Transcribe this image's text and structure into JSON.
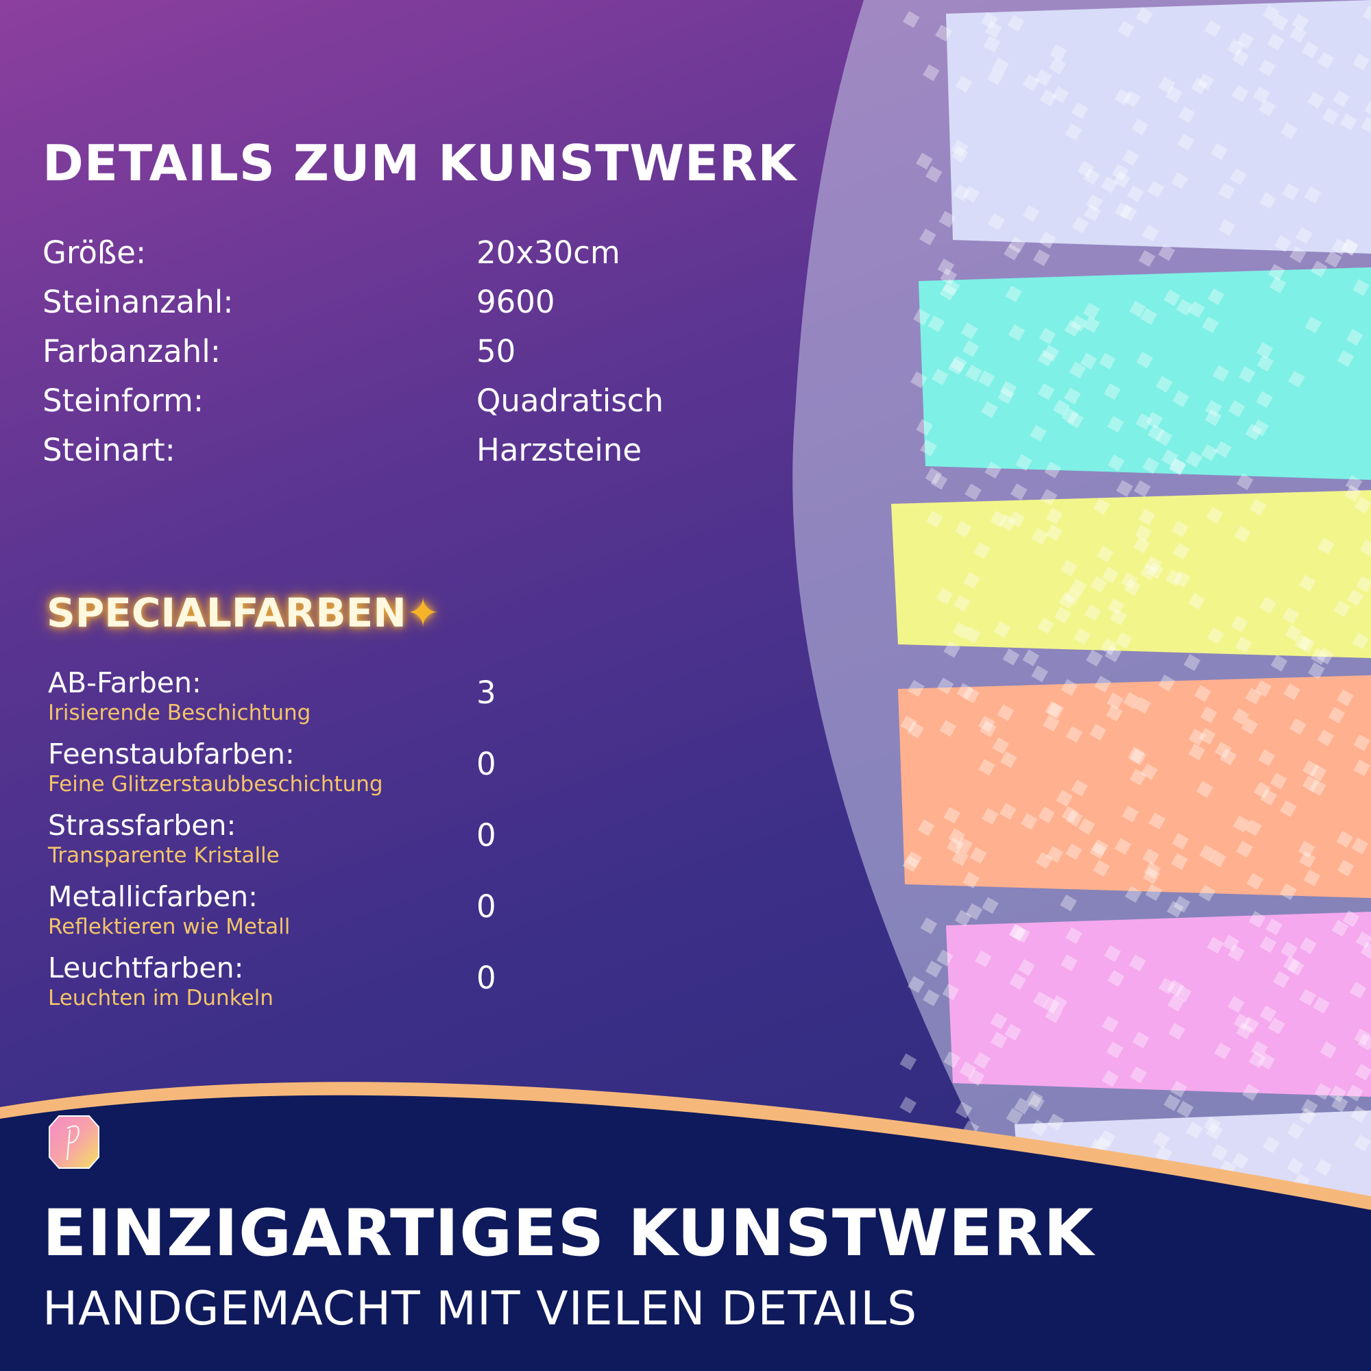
{
  "details": {
    "title": "DETAILS ZUM KUNSTWERK",
    "rows": [
      {
        "label": "Größe:",
        "value": "20x30cm"
      },
      {
        "label": "Steinanzahl:",
        "value": "9600"
      },
      {
        "label": "Farbanzahl:",
        "value": "50"
      },
      {
        "label": "Steinform:",
        "value": "Quadratisch"
      },
      {
        "label": "Steinart:",
        "value": "Harzsteine"
      }
    ]
  },
  "special": {
    "title": "SPECIALFARBEN",
    "title_icon": "sparkles-icon",
    "rows": [
      {
        "label": "AB-Farben:",
        "sub": "Irisierende Beschichtung",
        "value": "3"
      },
      {
        "label": "Feenstaubfarben:",
        "sub": "Feine Glitzerstaubbeschichtung",
        "value": "0"
      },
      {
        "label": "Strassfarben:",
        "sub": "Transparente Kristalle",
        "value": "0"
      },
      {
        "label": "Metallicfarben:",
        "sub": "Reflektieren wie Metall",
        "value": "0"
      },
      {
        "label": "Leuchtfarben:",
        "sub": "Leuchten im Dunkeln",
        "value": "0"
      }
    ]
  },
  "footer": {
    "title": "EINZIGARTIGES KUNSTWERK",
    "subtitle": "HANDGEMACHT MIT VIELEN DETAILS"
  },
  "colors": {
    "accent": "#f3c46a",
    "navy": "#0f1a5c",
    "wave": "#f6b87a",
    "bead_bands": [
      "#d8dcf8",
      "#7ef0e6",
      "#f2f58a",
      "#ffb08e",
      "#f5a8ee",
      "#dcdcf8"
    ]
  }
}
